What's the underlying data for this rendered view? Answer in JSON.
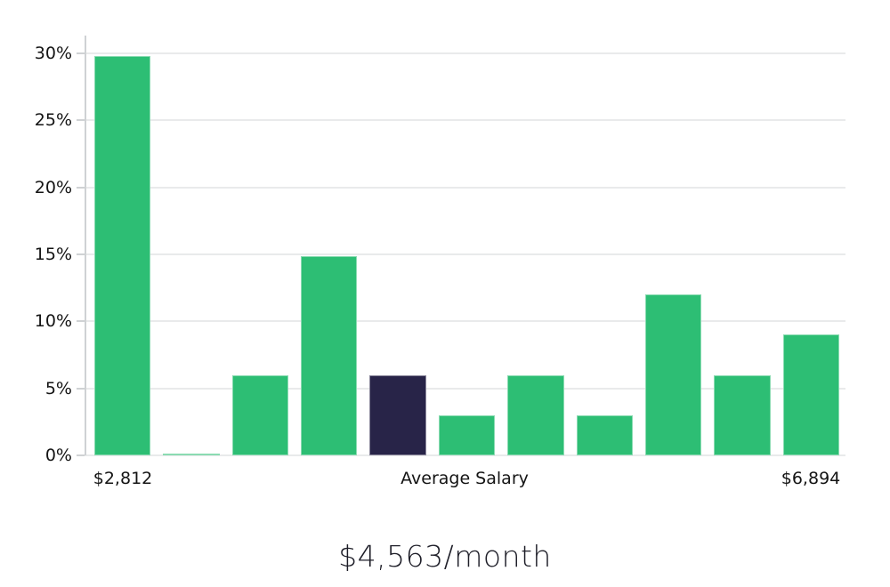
{
  "chart_data": {
    "type": "bar",
    "title": "$4,563/month",
    "values": [
      29.8,
      0.1,
      6,
      14.9,
      6,
      3,
      6,
      3,
      12,
      6,
      9
    ],
    "highlight_index": 4,
    "x_tick_labels": [
      "$2,812",
      "Average Salary",
      "$6,894"
    ],
    "y_tick_labels": [
      "0%",
      "5%",
      "10%",
      "15%",
      "20%",
      "25%",
      "30%"
    ],
    "y_tick_values": [
      0,
      5,
      10,
      15,
      20,
      25,
      30
    ],
    "ylim": [
      0,
      31.3
    ],
    "grid": "horizontal",
    "legend": "none",
    "colors": {
      "bar": "#2dbe74",
      "highlight": "#282448",
      "gridline": "#e9eaeb",
      "axis": "#cfd2d4",
      "text": "#141414"
    }
  }
}
